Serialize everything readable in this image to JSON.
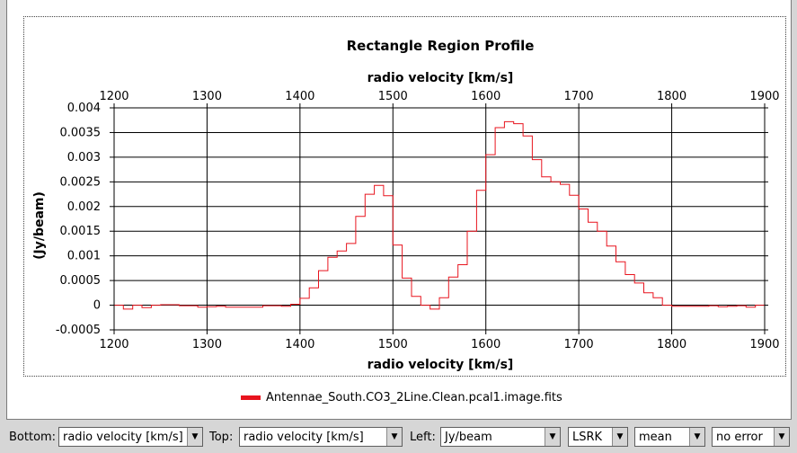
{
  "colors": {
    "series": "#e8141e",
    "axis": "#000000",
    "grid": "#000000"
  },
  "controls": {
    "bottom_label": "Bottom:",
    "bottom_value": "radio velocity [km/s]",
    "top_label": "Top:",
    "top_value": "radio velocity [km/s]",
    "left_label": "Left:",
    "left_value": "Jy/beam",
    "frame_value": "LSRK",
    "stat_value": "mean",
    "error_value": "no error",
    "dropdown_icon": "triangle-down-icon"
  },
  "chart_data": {
    "type": "line",
    "step": true,
    "title": "Rectangle Region Profile",
    "xlabel": "radio velocity [km/s]",
    "xlabel_top": "radio velocity [km/s]",
    "ylabel": "(Jy/beam)",
    "xlim": [
      1200,
      1900
    ],
    "ylim": [
      -0.0005,
      0.004
    ],
    "grid": true,
    "legend_position": "bottom",
    "x_ticks": [
      "1200",
      "1300",
      "1400",
      "1500",
      "1600",
      "1700",
      "1800",
      "1900"
    ],
    "y_ticks": [
      "-0.0005",
      "0",
      "0.0005",
      "0.001",
      "0.0015",
      "0.002",
      "0.0025",
      "0.003",
      "0.0035",
      "0.004"
    ],
    "series": [
      {
        "name": "Antennae_South.CO3_2Line.Clean.pcal1.image.fits",
        "x": [
          1200,
          1210,
          1220,
          1230,
          1240,
          1250,
          1260,
          1270,
          1280,
          1290,
          1300,
          1310,
          1320,
          1330,
          1340,
          1350,
          1360,
          1370,
          1380,
          1390,
          1400,
          1410,
          1420,
          1430,
          1440,
          1450,
          1460,
          1470,
          1480,
          1490,
          1500,
          1510,
          1520,
          1530,
          1540,
          1550,
          1560,
          1570,
          1580,
          1590,
          1600,
          1610,
          1620,
          1630,
          1640,
          1650,
          1660,
          1670,
          1680,
          1690,
          1700,
          1710,
          1720,
          1730,
          1740,
          1750,
          1760,
          1770,
          1780,
          1790,
          1800,
          1810,
          1820,
          1830,
          1840,
          1850,
          1860,
          1870,
          1880,
          1890
        ],
        "values": [
          0.0,
          -8e-05,
          0.0,
          -5e-05,
          0.0,
          1e-05,
          1e-05,
          -1e-05,
          -1e-05,
          -4e-05,
          -3e-05,
          -2e-05,
          -4e-05,
          -4e-05,
          -4e-05,
          -4e-05,
          -1e-05,
          -1e-05,
          -2e-05,
          2e-05,
          0.00014,
          0.00035,
          0.0007,
          0.00097,
          0.0011,
          0.00125,
          0.0018,
          0.00225,
          0.00243,
          0.00222,
          0.00122,
          0.00055,
          0.00018,
          0.0,
          -8e-05,
          0.00015,
          0.00057,
          0.00082,
          0.0015,
          0.00233,
          0.00305,
          0.0036,
          0.00372,
          0.00368,
          0.00343,
          0.00295,
          0.0026,
          0.0025,
          0.00245,
          0.00223,
          0.00195,
          0.00168,
          0.0015,
          0.0012,
          0.00088,
          0.00062,
          0.00045,
          0.00025,
          0.00015,
          0.0,
          -2e-05,
          -2e-05,
          -2e-05,
          -2e-05,
          -1e-05,
          -3e-05,
          -2e-05,
          -1e-05,
          -4e-05,
          0.0
        ]
      }
    ]
  }
}
